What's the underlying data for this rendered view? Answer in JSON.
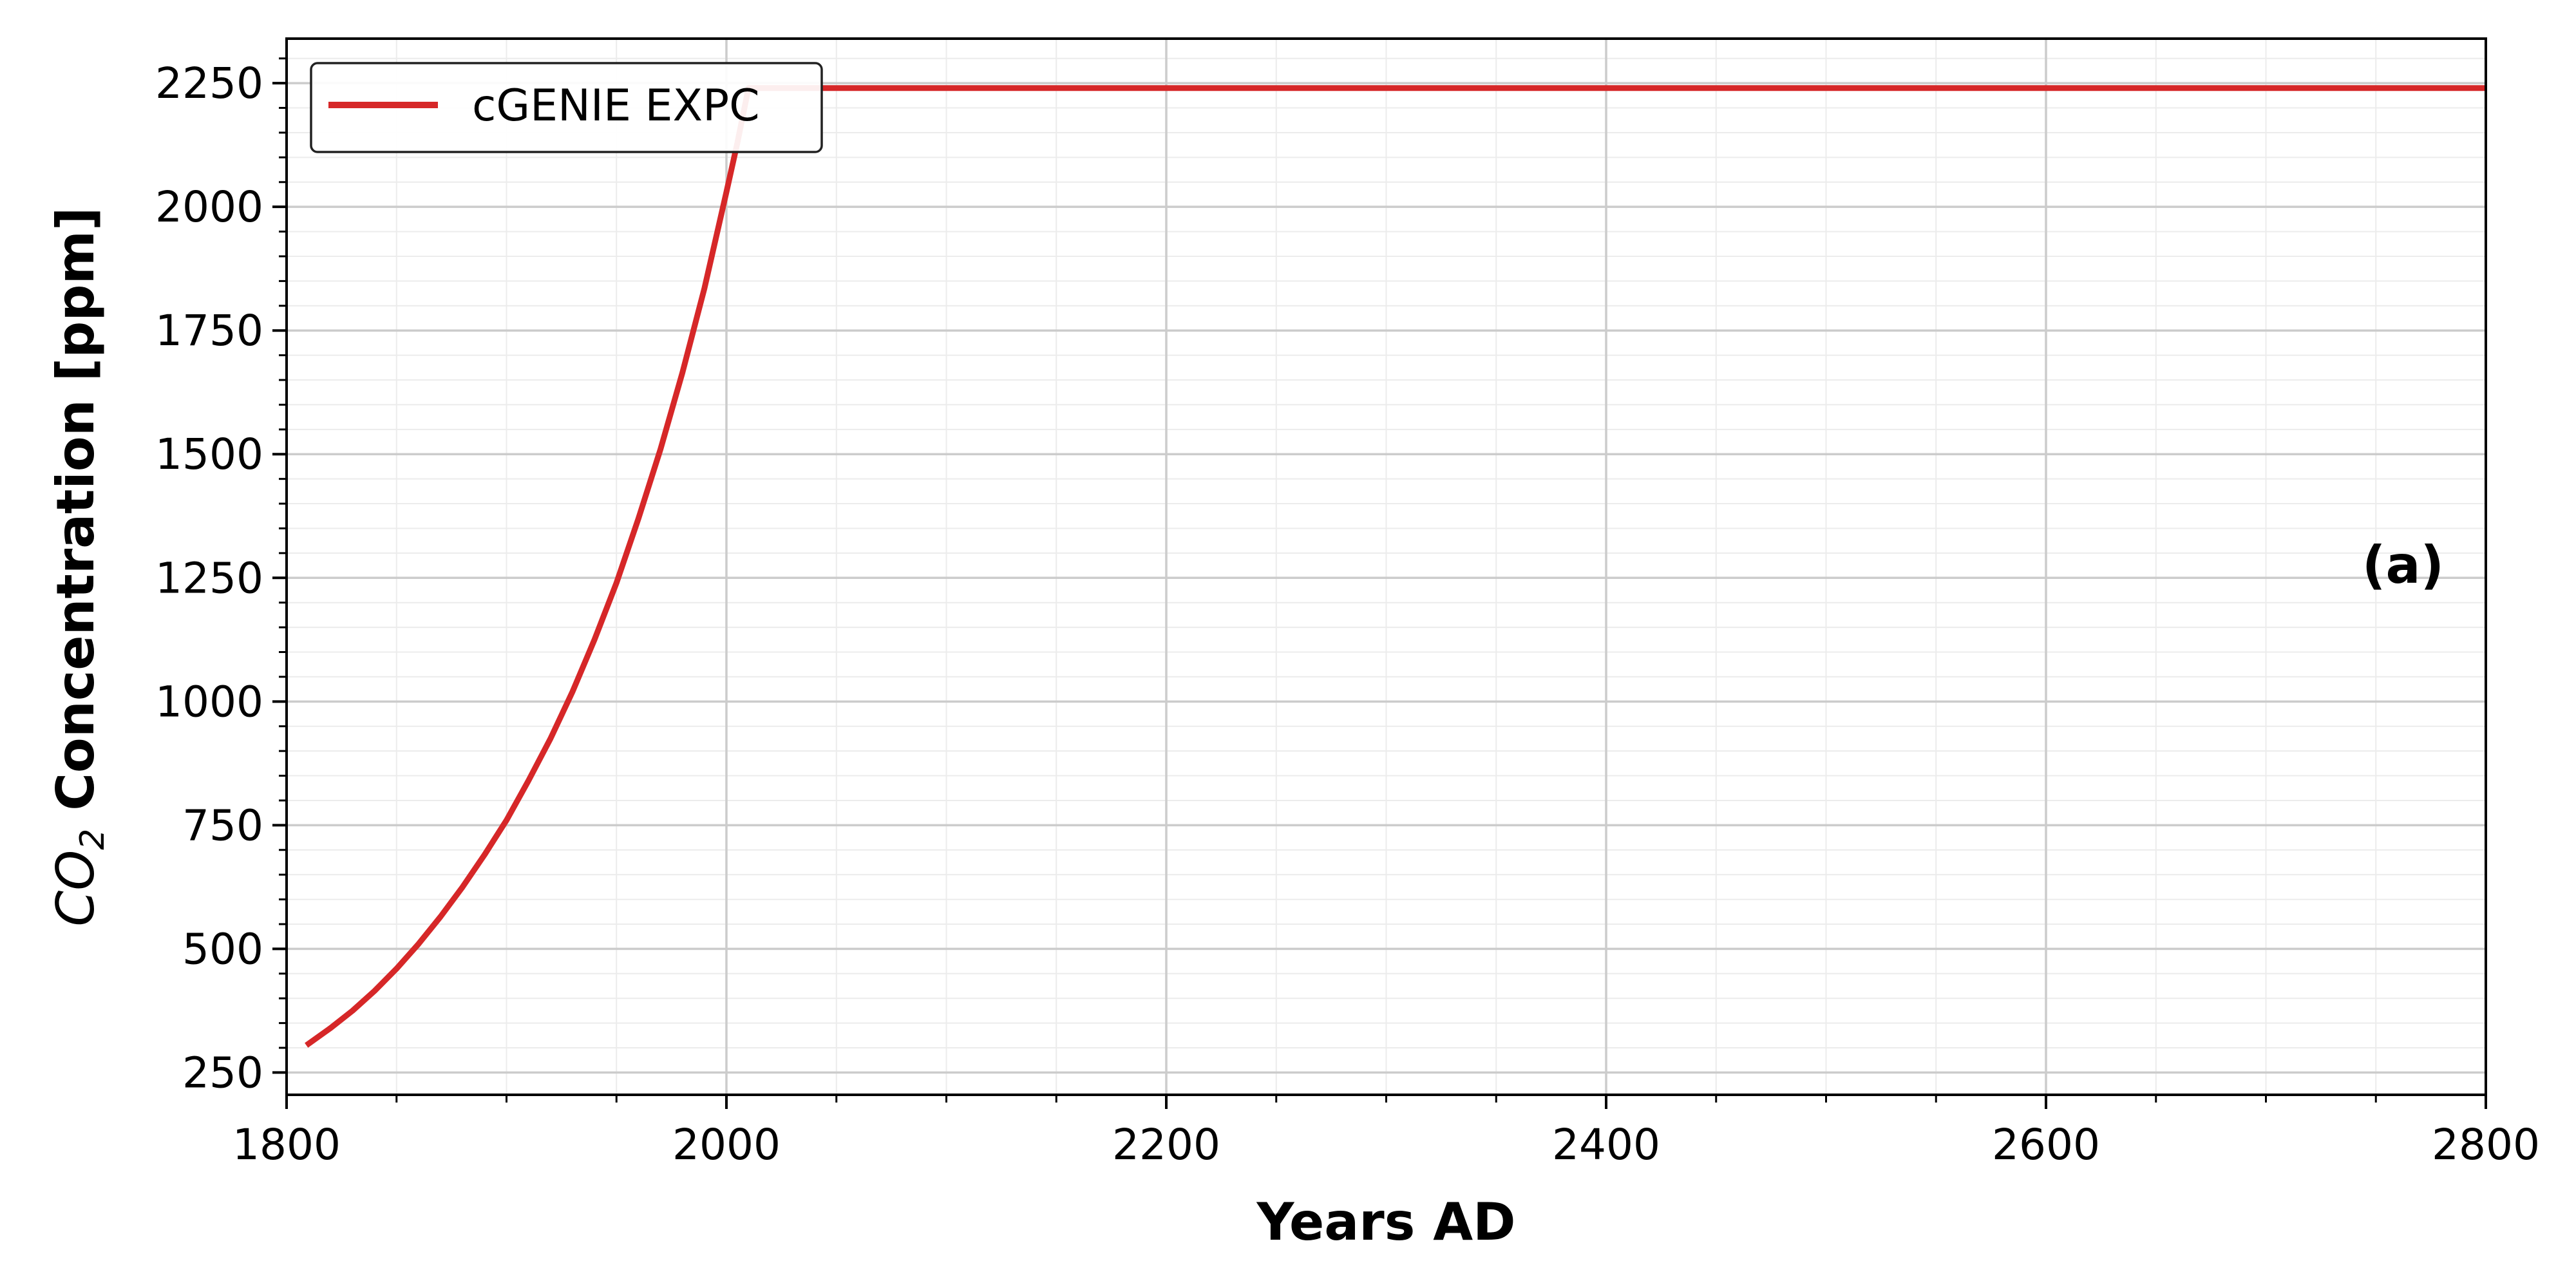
{
  "chart_data": {
    "type": "line",
    "xlabel": "Years AD",
    "ylabel_prefix": "CO",
    "ylabel_subscript": "2",
    "ylabel_suffix": " Concentration [ppm]",
    "xlim": [
      1800,
      2800
    ],
    "ylim": [
      205,
      2340
    ],
    "x_ticks": [
      1800,
      2000,
      2200,
      2400,
      2600,
      2800
    ],
    "y_ticks": [
      250,
      500,
      750,
      1000,
      1250,
      1500,
      1750,
      2000,
      2250
    ],
    "x_minor_step": 50,
    "y_minor_step": 50,
    "grid": true,
    "legend_position": "top-left",
    "panel_label": "(a)",
    "colors": {
      "series": "#d62728",
      "grid_major": "#cccccc",
      "grid_minor": "#ececec"
    },
    "series": [
      {
        "name": "cGENIE EXPC",
        "x": [
          1809,
          1820,
          1830,
          1840,
          1850,
          1860,
          1870,
          1880,
          1890,
          1900,
          1910,
          1920,
          1930,
          1940,
          1950,
          1960,
          1970,
          1980,
          1990,
          2000,
          2005,
          2010,
          2020,
          2100,
          2200,
          2400,
          2600,
          2800
        ],
        "y": [
          305,
          340,
          375,
          415,
          460,
          510,
          565,
          625,
          690,
          760,
          840,
          925,
          1020,
          1125,
          1240,
          1370,
          1510,
          1665,
          1835,
          2030,
          2130,
          2240,
          2240,
          2240,
          2240,
          2240,
          2240,
          2240
        ]
      }
    ]
  }
}
